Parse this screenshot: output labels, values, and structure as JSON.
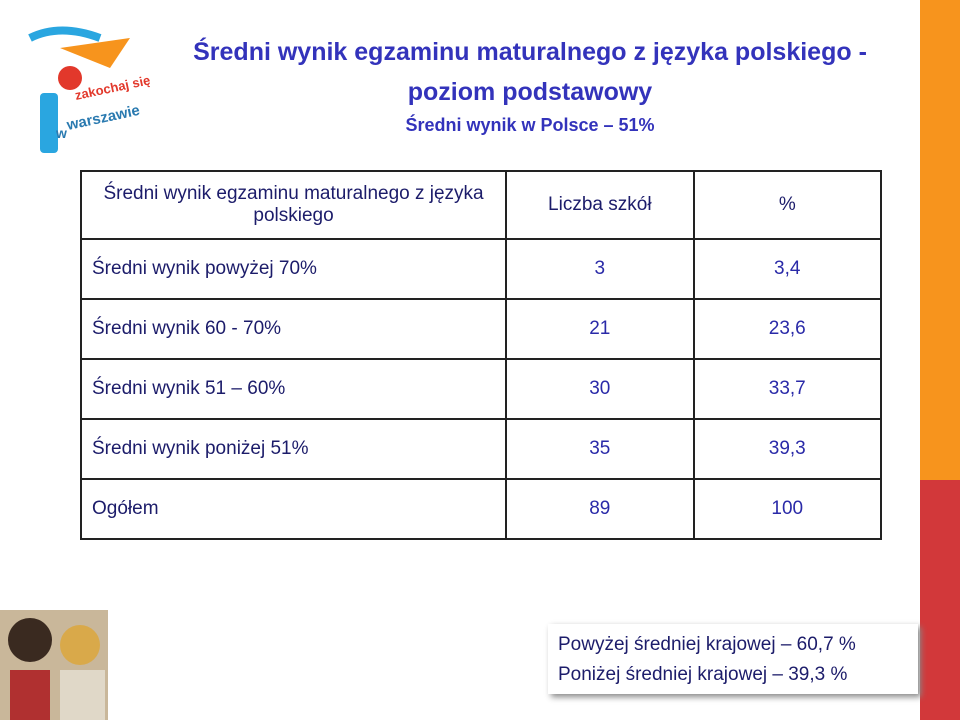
{
  "logo": {
    "text_1": "zakochaj się",
    "text_2": "w",
    "text_3": "warszawie"
  },
  "header": {
    "title_1": "Średni wynik egzaminu maturalnego z  języka polskiego  -",
    "title_2": "poziom podstawowy",
    "subtitle": "Średni wynik w Polsce – 51%"
  },
  "table": {
    "columns": [
      "Średni wynik egzaminu maturalnego z języka polskiego",
      "Liczba szkół",
      "%"
    ],
    "rows": [
      [
        "Średni wynik powyżej 70%",
        "3",
        "3,4"
      ],
      [
        "Średni wynik  60 - 70%",
        "21",
        "23,6"
      ],
      [
        "Średni wynik  51 – 60%",
        "30",
        "33,7"
      ],
      [
        "Średni wynik  poniżej 51%",
        "35",
        "39,3"
      ],
      [
        "Ogółem",
        "89",
        "100"
      ]
    ]
  },
  "footer": {
    "line_1": "Powyżej średniej krajowej – 60,7 %",
    "line_2": "Poniżej średniej krajowej   – 39,3 %"
  }
}
